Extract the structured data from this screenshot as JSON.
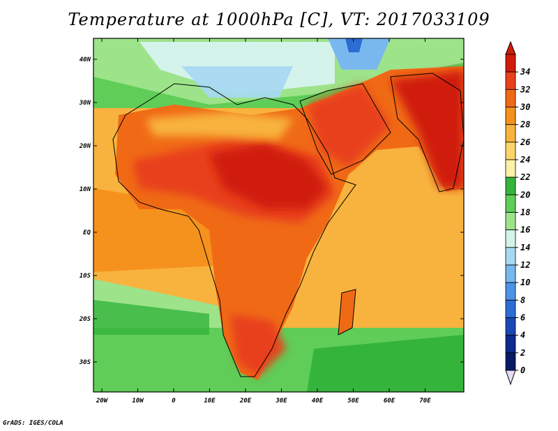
{
  "title": "Temperature at 1000hPa [C], VT: 2017033109",
  "credit": "GrADS: IGES/COLA",
  "map": {
    "lon_labels": [
      "20W",
      "10W",
      "0",
      "10E",
      "20E",
      "30E",
      "40E",
      "50E",
      "60E",
      "70E"
    ],
    "lat_labels": [
      "40N",
      "30N",
      "20N",
      "10N",
      "EQ",
      "10S",
      "20S",
      "30S"
    ]
  },
  "colorbar": {
    "labels": [
      "34",
      "32",
      "30",
      "28",
      "26",
      "24",
      "22",
      "20",
      "18",
      "16",
      "14",
      "12",
      "10",
      "8",
      "6",
      "4",
      "2",
      "0"
    ],
    "colors": [
      "#d01c0a",
      "#e8411c",
      "#f06a16",
      "#f5921d",
      "#f8b33e",
      "#fbd46a",
      "#fdf1a8",
      "#35b43c",
      "#5fcd58",
      "#9de38a",
      "#d4f3ea",
      "#a6d8f3",
      "#79b8ee",
      "#4d93e5",
      "#2d6cd2",
      "#1a48b3",
      "#0d2a8c",
      "#081a66"
    ]
  }
}
